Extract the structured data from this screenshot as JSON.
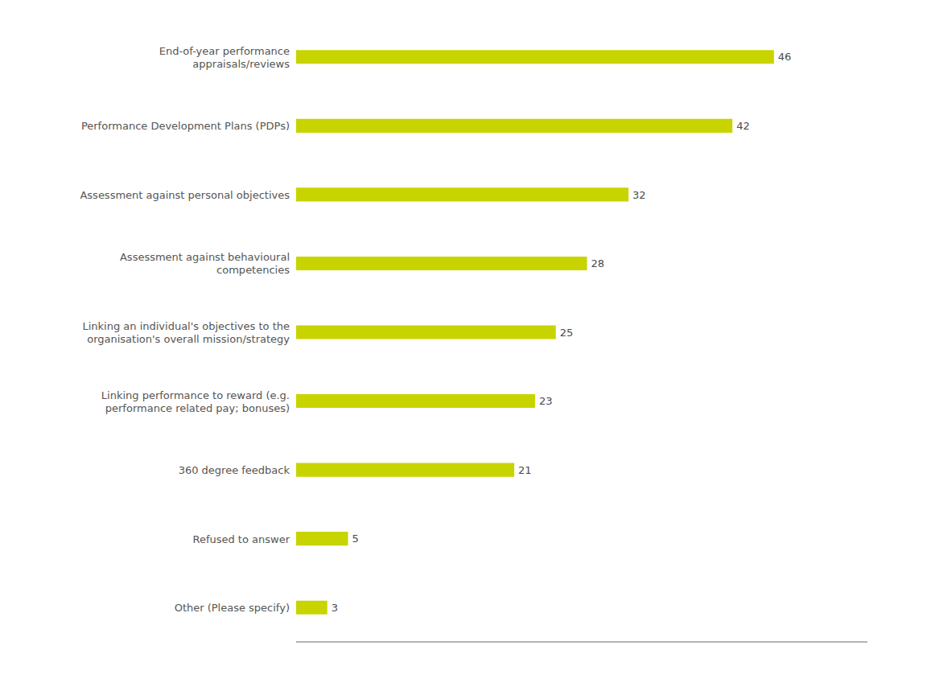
{
  "chart_data": {
    "type": "bar",
    "orientation": "horizontal",
    "categories": [
      "Other (Please specify)",
      "Refused to answer",
      "360 degree feedback",
      "Linking performance to reward (e.g.\nperformance related pay; bonuses)",
      "Linking an individual's objectives to the\norganisation's overall mission/strategy",
      "Assessment against behavioural\ncompetencies",
      "Assessment against personal objectives",
      "Performance Development Plans (PDPs)",
      "End-of-year performance\nappraisals/reviews"
    ],
    "values": [
      3,
      5,
      21,
      23,
      25,
      28,
      32,
      42,
      46
    ],
    "color": "#c8d400",
    "xlim": [
      0,
      55
    ],
    "data_labels": true,
    "tick_labels": "y",
    "grid": false
  }
}
